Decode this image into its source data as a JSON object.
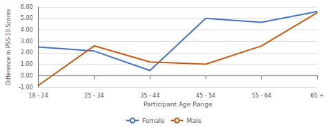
{
  "chart_data": {
    "type": "line",
    "xlabel": "Participant Age Range",
    "ylabel": "Difference in PSS-10 Scores",
    "categories": [
      "18 - 24",
      "25 - 34",
      "35 - 44",
      "45 - 54",
      "55 - 64",
      "65 +"
    ],
    "series": [
      {
        "name": "Female",
        "color": "#4472C4",
        "values": [
          2.5,
          2.15,
          0.45,
          5.0,
          4.65,
          5.6
        ]
      },
      {
        "name": "Male",
        "color": "#C55A11",
        "values": [
          -0.85,
          2.6,
          1.2,
          1.0,
          2.6,
          5.5
        ]
      }
    ],
    "ylim": [
      -1.0,
      6.0
    ],
    "yticks": [
      {
        "value": -1.0,
        "label": "-1.00"
      },
      {
        "value": 0.0,
        "label": "0.00"
      },
      {
        "value": 1.0,
        "label": "1.00"
      },
      {
        "value": 2.0,
        "label": "2.00"
      },
      {
        "value": 3.0,
        "label": "3.00"
      },
      {
        "value": 4.0,
        "label": "4.00"
      },
      {
        "value": 5.0,
        "label": "5.00"
      },
      {
        "value": 6.0,
        "label": "6.00"
      }
    ],
    "grid": true,
    "legend": "bottom"
  }
}
